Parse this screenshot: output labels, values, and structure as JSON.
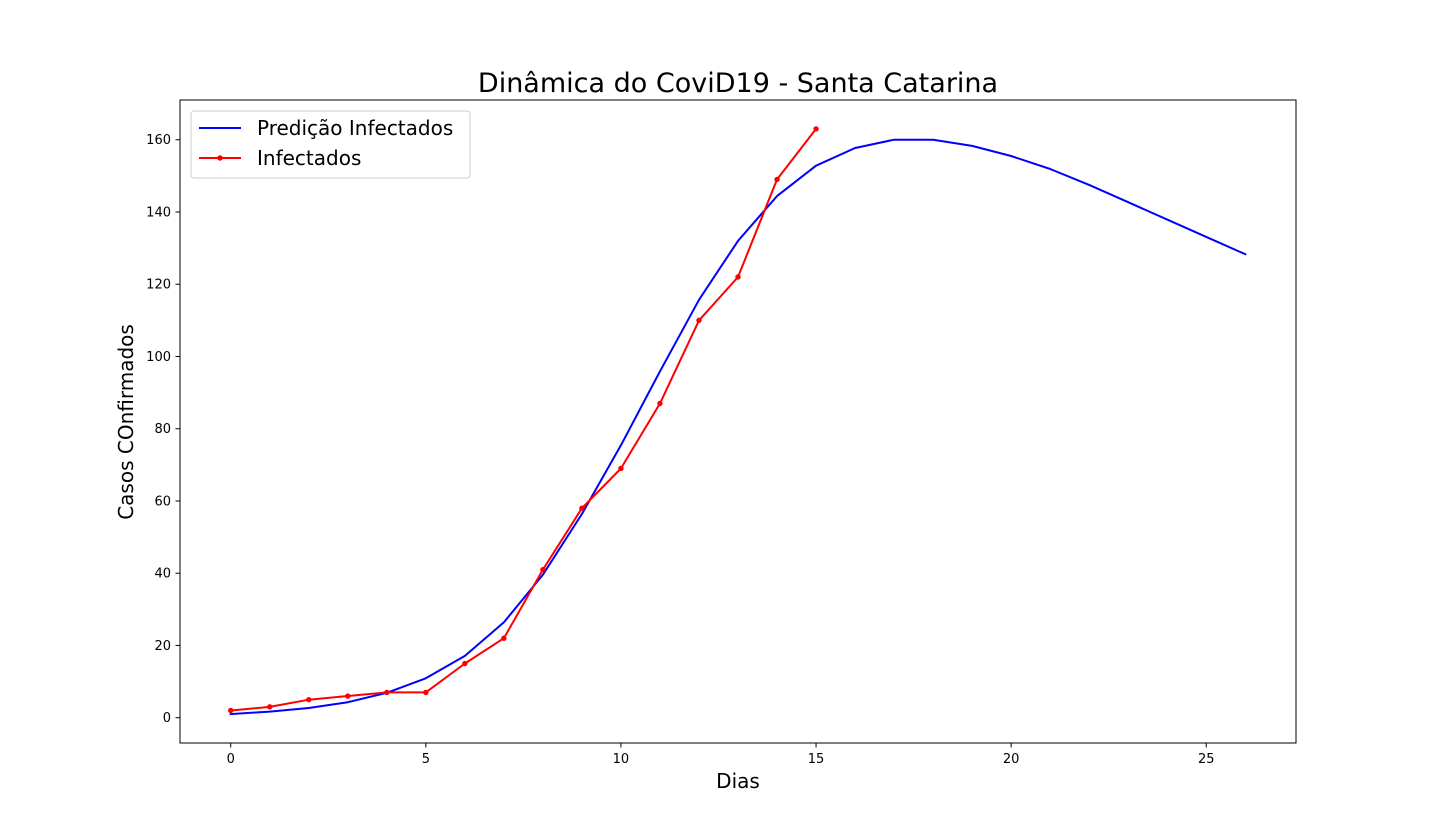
{
  "chart_data": {
    "type": "line",
    "title": "Dinâmica do CoviD19 - Santa Catarina",
    "xlabel": "Dias",
    "ylabel": "Casos COnfirmados",
    "xlim": [
      -1.3,
      27.3
    ],
    "ylim": [
      -7,
      171
    ],
    "xticks": [
      0,
      5,
      10,
      15,
      20,
      25
    ],
    "yticks": [
      0,
      20,
      40,
      60,
      80,
      100,
      120,
      140,
      160
    ],
    "grid": false,
    "legend_position": "top-left",
    "series": [
      {
        "name": "Predição Infectados",
        "color": "#0000ff",
        "marker": false,
        "x": [
          0,
          1,
          2,
          3,
          4,
          5,
          6,
          7,
          8,
          9,
          10,
          11,
          12,
          13,
          14,
          15,
          16,
          17,
          18,
          19,
          20,
          21,
          22,
          23,
          24,
          25,
          26
        ],
        "values": [
          1,
          1.7,
          2.7,
          4.3,
          6.9,
          10.9,
          17.1,
          26.4,
          39.6,
          56.4,
          75.4,
          95.9,
          115.7,
          132,
          144.4,
          152.8,
          157.7,
          160,
          160,
          158.3,
          155.5,
          151.9,
          147.5,
          142.7,
          137.9,
          133.1,
          128.3
        ]
      },
      {
        "name": "Infectados",
        "color": "#ff0000",
        "marker": true,
        "x": [
          0,
          1,
          2,
          3,
          4,
          5,
          6,
          7,
          8,
          9,
          10,
          11,
          12,
          13,
          14,
          15
        ],
        "values": [
          2,
          3,
          5,
          6,
          7,
          7,
          15,
          22,
          41,
          58,
          69,
          87,
          110,
          122,
          149,
          163
        ]
      }
    ]
  }
}
